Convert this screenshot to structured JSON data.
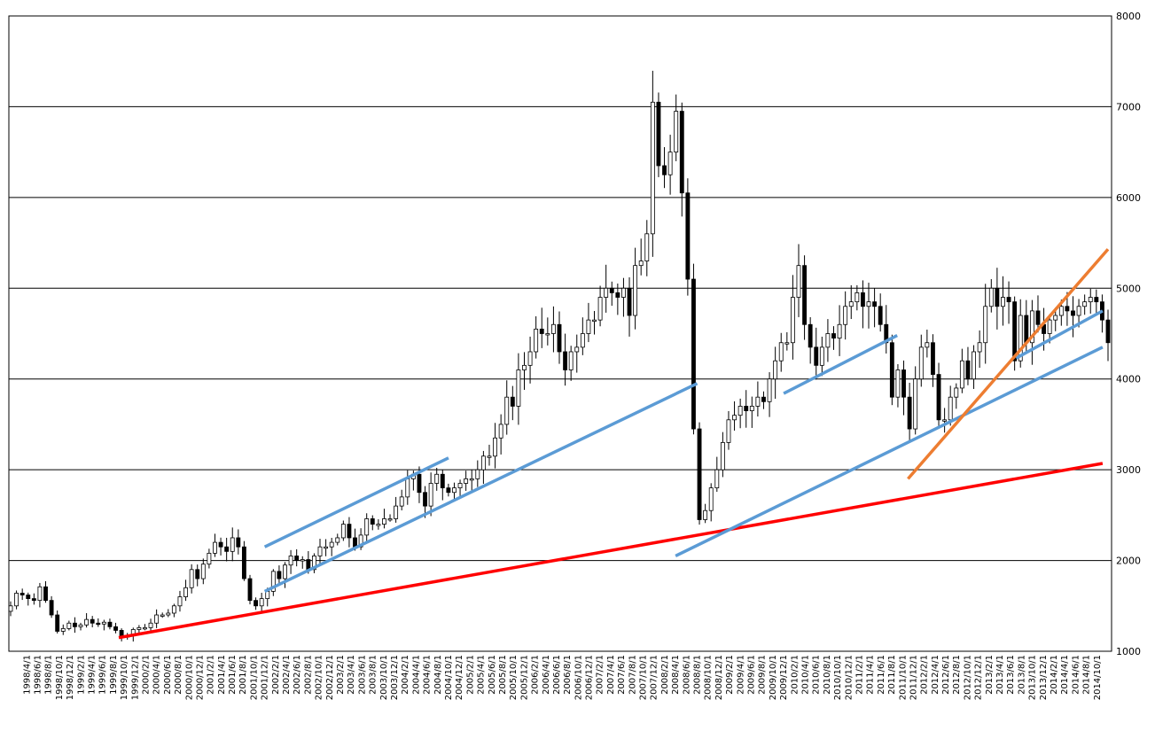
{
  "chart_data": {
    "type": "candlestick",
    "ylim": [
      1000,
      8000
    ],
    "y_ticks": [
      1000,
      2000,
      3000,
      4000,
      5000,
      6000,
      7000,
      8000
    ],
    "y_axis_position": "right",
    "grid": {
      "horizontal": true,
      "major_only": true
    },
    "x_tick_labels": [
      "1998/4/1",
      "1998/6/1",
      "1998/8/1",
      "1998/10/1",
      "1998/12/1",
      "1999/2/1",
      "1999/4/1",
      "1999/6/1",
      "1999/8/1",
      "1999/10/1",
      "1999/12/1",
      "2000/2/1",
      "2000/4/1",
      "2000/6/1",
      "2000/8/1",
      "2000/10/1",
      "2000/12/1",
      "2001/2/1",
      "2001/4/1",
      "2001/6/1",
      "2001/8/1",
      "2001/10/1",
      "2001/12/1",
      "2002/2/1",
      "2002/4/1",
      "2002/6/1",
      "2002/8/1",
      "2002/10/1",
      "2002/12/1",
      "2003/2/1",
      "2003/4/1",
      "2003/6/1",
      "2003/8/1",
      "2003/10/1",
      "2003/12/1",
      "2004/2/1",
      "2004/4/1",
      "2004/6/1",
      "2004/8/1",
      "2004/10/1",
      "2004/12/1",
      "2005/2/1",
      "2005/4/1",
      "2005/6/1",
      "2005/8/1",
      "2005/10/1",
      "2005/12/1",
      "2006/2/1",
      "2006/4/1",
      "2006/6/1",
      "2006/8/1",
      "2006/10/1",
      "2006/12/1",
      "2007/2/1",
      "2007/4/1",
      "2007/6/1",
      "2007/8/1",
      "2007/10/1",
      "2007/12/1",
      "2008/2/1",
      "2008/4/1",
      "2008/6/1",
      "2008/8/1",
      "2008/10/1",
      "2008/12/1",
      "2009/2/1",
      "2009/4/1",
      "2009/6/1",
      "2009/8/1",
      "2009/10/1",
      "2009/12/1",
      "2010/2/1",
      "2010/4/1",
      "2010/6/1",
      "2010/8/1",
      "2010/10/1",
      "2010/12/1",
      "2011/2/1",
      "2011/4/1",
      "2011/6/1",
      "2011/8/1",
      "2011/10/1",
      "2011/12/1",
      "2012/2/1",
      "2012/4/1",
      "2012/6/1",
      "2012/8/1",
      "2012/10/1",
      "2012/12/1",
      "2013/2/1",
      "2013/4/1",
      "2013/6/1",
      "2013/8/1",
      "2013/10/1",
      "2013/12/1",
      "2014/2/1",
      "2014/4/1",
      "2014/6/1",
      "2014/8/1",
      "2014/10/1"
    ],
    "ohlc_close_series": [
      1500,
      1640,
      1620,
      1580,
      1560,
      1710,
      1560,
      1400,
      1220,
      1250,
      1310,
      1270,
      1290,
      1350,
      1310,
      1300,
      1320,
      1270,
      1230,
      1160,
      1170,
      1240,
      1260,
      1260,
      1310,
      1400,
      1400,
      1420,
      1500,
      1600,
      1700,
      1900,
      1800,
      1960,
      2080,
      2200,
      2150,
      2100,
      2250,
      2150,
      1800,
      1560,
      1500,
      1580,
      1660,
      1880,
      1800,
      1950,
      2050,
      2000,
      2010,
      1900,
      2050,
      2150,
      2150,
      2200,
      2250,
      2400,
      2250,
      2150,
      2280,
      2460,
      2400,
      2400,
      2460,
      2460,
      2600,
      2700,
      2900,
      2950,
      2750,
      2600,
      2850,
      2950,
      2800,
      2750,
      2800,
      2850,
      2900,
      2900,
      3000,
      3150,
      3150,
      3350,
      3500,
      3800,
      3700,
      4100,
      4150,
      4300,
      4550,
      4500,
      4500,
      4600,
      4300,
      4100,
      4300,
      4350,
      4500,
      4650,
      4650,
      4900,
      5000,
      4950,
      4900,
      5000,
      4700,
      5250,
      5300,
      5600,
      7050,
      6350,
      6250,
      6500,
      6950,
      6050,
      5100,
      3450,
      2450,
      2550,
      2800,
      3000,
      3300,
      3550,
      3600,
      3700,
      3650,
      3700,
      3800,
      3750,
      4000,
      4200,
      4400,
      4400,
      4900,
      5250,
      4600,
      4350,
      4150,
      4350,
      4500,
      4450,
      4600,
      4800,
      4850,
      4950,
      4800,
      4850,
      4800,
      4600,
      4400,
      3800,
      4100,
      3800,
      3450,
      4000,
      4350,
      4400,
      4050,
      3550,
      3550,
      3800,
      3900,
      4200,
      4000,
      4300,
      4400,
      4800,
      5000,
      4800,
      4900,
      4850,
      4200,
      4700,
      4400,
      4750,
      4600,
      4500,
      4650,
      4700,
      4800,
      4750,
      4700,
      4800,
      4850,
      4900,
      4850,
      4650,
      4400
    ],
    "trendlines": [
      {
        "color": "#ff0000",
        "from": [
          "1999/9/1",
          1150
        ],
        "to": [
          "2014/11/1",
          3070
        ]
      },
      {
        "color": "#5b9bd5",
        "from": [
          "2001/12/1",
          2150
        ],
        "to": [
          "2004/10/1",
          3130
        ]
      },
      {
        "color": "#5b9bd5",
        "from": [
          "2001/12/1",
          1660
        ],
        "to": [
          "2008/8/1",
          3950
        ]
      },
      {
        "color": "#5b9bd5",
        "from": [
          "2008/4/1",
          2050
        ],
        "to": [
          "2014/11/1",
          4350
        ]
      },
      {
        "color": "#5b9bd5",
        "from": [
          "2009/12/1",
          3840
        ],
        "to": [
          "2011/9/1",
          4480
        ]
      },
      {
        "color": "#5b9bd5",
        "from": [
          "2013/7/1",
          4230
        ],
        "to": [
          "2014/11/1",
          4750
        ]
      },
      {
        "color": "#ed7d31",
        "from": [
          "2011/11/1",
          2900
        ],
        "to": [
          "2014/12/1",
          5430
        ]
      }
    ],
    "colors": {
      "up_body": "#ffffff",
      "down_body": "#000000",
      "wick": "#000000"
    }
  }
}
